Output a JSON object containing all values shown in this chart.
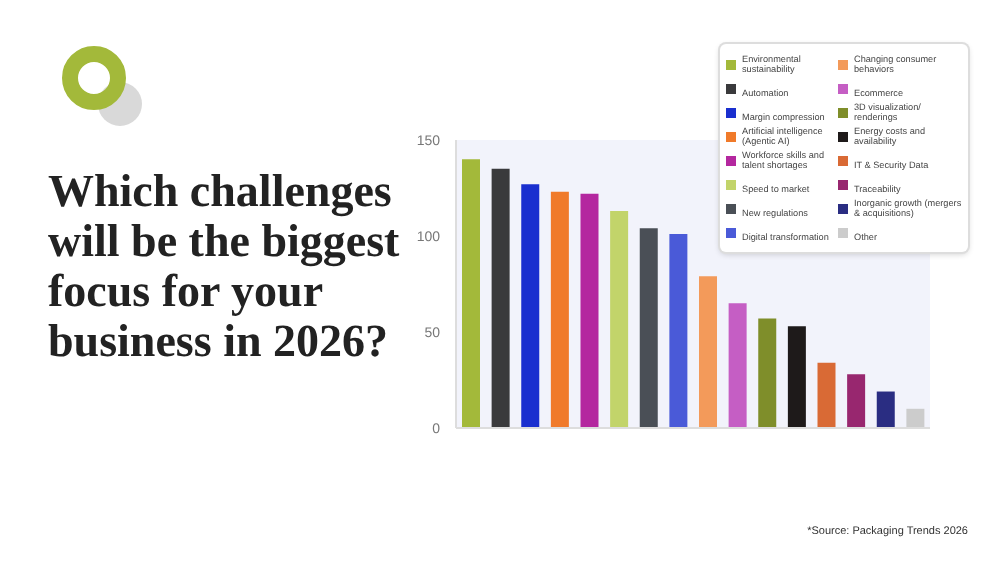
{
  "chart_data": {
    "type": "bar",
    "title": "Which challenges will be the biggest focus for your business in 2026?",
    "categories": [
      null,
      null,
      null,
      null,
      null,
      null,
      null,
      null,
      null,
      null,
      null,
      null,
      null,
      null,
      null,
      null
    ],
    "series": [
      {
        "name": "Environmental sustainability",
        "color": "#a3b93a",
        "values": [
          140,
          null,
          null,
          null,
          null,
          null,
          null,
          null,
          null,
          null,
          null,
          null,
          null,
          null,
          null,
          null
        ]
      },
      {
        "name": "Automation",
        "color": "#3a3a3c",
        "values": [
          null,
          135,
          null,
          null,
          null,
          null,
          null,
          null,
          null,
          null,
          null,
          null,
          null,
          null,
          null,
          null
        ]
      },
      {
        "name": "Margin compression",
        "color": "#1a2fcf",
        "values": [
          null,
          null,
          127,
          null,
          null,
          null,
          null,
          null,
          null,
          null,
          null,
          null,
          null,
          null,
          null,
          null
        ]
      },
      {
        "name": "Artificial intelligence (Agentic AI)",
        "color": "#f07a2a",
        "values": [
          null,
          null,
          null,
          123,
          null,
          null,
          null,
          null,
          null,
          null,
          null,
          null,
          null,
          null,
          null,
          null
        ]
      },
      {
        "name": "Workforce skills and talent shortages",
        "color": "#b4279f",
        "values": [
          null,
          null,
          null,
          null,
          122,
          null,
          null,
          null,
          null,
          null,
          null,
          null,
          null,
          null,
          null,
          null
        ]
      },
      {
        "name": "Speed to market",
        "color": "#c2d46a",
        "values": [
          null,
          null,
          null,
          null,
          null,
          113,
          null,
          null,
          null,
          null,
          null,
          null,
          null,
          null,
          null,
          null
        ]
      },
      {
        "name": "New regulations",
        "color": "#4a4f56",
        "values": [
          null,
          null,
          null,
          null,
          null,
          null,
          104,
          null,
          null,
          null,
          null,
          null,
          null,
          null,
          null,
          null
        ]
      },
      {
        "name": "Digital transformation",
        "color": "#4a5ad8",
        "values": [
          null,
          null,
          null,
          null,
          null,
          null,
          null,
          101,
          null,
          null,
          null,
          null,
          null,
          null,
          null,
          null
        ]
      },
      {
        "name": "Changing consumer behaviors",
        "color": "#f39a5a",
        "values": [
          null,
          null,
          null,
          null,
          null,
          null,
          null,
          null,
          79,
          null,
          null,
          null,
          null,
          null,
          null,
          null
        ]
      },
      {
        "name": "Ecommerce",
        "color": "#c55ec4",
        "values": [
          null,
          null,
          null,
          null,
          null,
          null,
          null,
          null,
          null,
          65,
          null,
          null,
          null,
          null,
          null,
          null
        ]
      },
      {
        "name": "3D visualization/ renderings",
        "color": "#7f8e2a",
        "values": [
          null,
          null,
          null,
          null,
          null,
          null,
          null,
          null,
          null,
          null,
          57,
          null,
          null,
          null,
          null,
          null
        ]
      },
      {
        "name": "Energy costs and availability",
        "color": "#1e1a1a",
        "values": [
          null,
          null,
          null,
          null,
          null,
          null,
          null,
          null,
          null,
          null,
          null,
          53,
          null,
          null,
          null,
          null
        ]
      },
      {
        "name": "IT & Security Data",
        "color": "#d96a35",
        "values": [
          null,
          null,
          null,
          null,
          null,
          null,
          null,
          null,
          null,
          null,
          null,
          null,
          34,
          null,
          null,
          null
        ]
      },
      {
        "name": "Traceability",
        "color": "#98276f",
        "values": [
          null,
          null,
          null,
          null,
          null,
          null,
          null,
          null,
          null,
          null,
          null,
          null,
          null,
          28,
          null,
          null
        ]
      },
      {
        "name": "Inorganic growth (mergers & acquisitions)",
        "color": "#2a2d82",
        "values": [
          null,
          null,
          null,
          null,
          null,
          null,
          null,
          null,
          null,
          null,
          null,
          null,
          null,
          null,
          19,
          null
        ]
      },
      {
        "name": "Other",
        "color": "#cccccc",
        "values": [
          null,
          null,
          null,
          null,
          null,
          null,
          null,
          null,
          null,
          null,
          null,
          null,
          null,
          null,
          null,
          10
        ]
      }
    ],
    "ylim": [
      0,
      150
    ],
    "yticks": [
      0,
      50,
      100,
      150
    ],
    "grid": false,
    "legend": "top right",
    "tick_labels": "y",
    "annotations": [
      "*Source: Packaging Trends 2026"
    ]
  }
}
